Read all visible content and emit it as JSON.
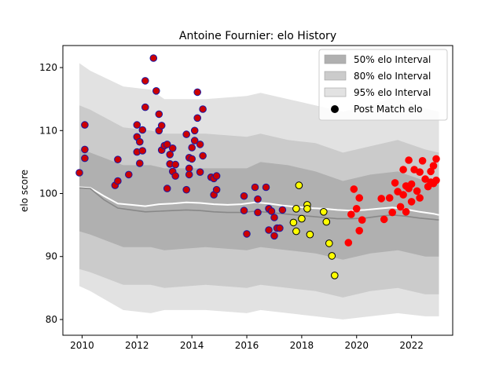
{
  "chart_data": {
    "type": "scatter",
    "title": "Antoine Fournier: elo History",
    "xlabel": "",
    "ylabel": "elo score",
    "xlim": [
      2009.3,
      2023.5
    ],
    "ylim": [
      77.5,
      123.5
    ],
    "x_ticks": [
      2010,
      2012,
      2014,
      2016,
      2018,
      2020,
      2022
    ],
    "y_ticks": [
      80,
      90,
      100,
      110,
      120
    ],
    "grid": false,
    "legend_position": "top-right",
    "legend": [
      {
        "label": "50% elo Interval",
        "kind": "band",
        "color": "#b0b0b0"
      },
      {
        "label": "80% elo Interval",
        "kind": "band",
        "color": "#cbcbcb"
      },
      {
        "label": "95% elo Interval",
        "kind": "band",
        "color": "#e2e2e2"
      },
      {
        "label": "Post Match elo",
        "kind": "marker",
        "color": "#000000"
      }
    ],
    "bands": {
      "x": [
        2009.9,
        2010.3,
        2011.5,
        2012.5,
        2013.0,
        2014.5,
        2016.0,
        2016.5,
        2017.5,
        2018.5,
        2019.5,
        2020.5,
        2021.5,
        2022.5,
        2023.0
      ],
      "p95_upper": [
        120.7,
        119.5,
        117.0,
        116.5,
        115.0,
        115.0,
        115.5,
        116.0,
        115.0,
        114.0,
        113.0,
        114.0,
        115.5,
        113.5,
        113.0
      ],
      "p80_upper": [
        114.0,
        113.3,
        110.5,
        110.0,
        109.5,
        109.5,
        109.0,
        109.5,
        108.5,
        108.0,
        106.5,
        107.5,
        108.5,
        107.0,
        106.5
      ],
      "p50_upper": [
        107.0,
        106.5,
        104.5,
        104.5,
        104.0,
        104.0,
        104.0,
        105.0,
        104.5,
        103.5,
        102.0,
        103.0,
        103.5,
        102.0,
        102.0
      ],
      "p50_lower": [
        94.0,
        93.5,
        91.5,
        91.5,
        91.0,
        91.5,
        91.0,
        91.5,
        91.0,
        90.5,
        89.5,
        90.5,
        91.0,
        90.0,
        90.0
      ],
      "p80_lower": [
        88.0,
        87.5,
        85.5,
        85.5,
        85.0,
        85.5,
        85.0,
        85.5,
        85.0,
        84.5,
        83.5,
        84.5,
        85.0,
        84.0,
        84.0
      ],
      "p95_lower": [
        85.3,
        84.5,
        81.5,
        81.0,
        81.5,
        81.5,
        81.0,
        81.5,
        81.0,
        80.5,
        80.0,
        80.5,
        81.0,
        80.5,
        80.5
      ]
    },
    "series": [
      {
        "name": "white-line",
        "color": "#ffffff",
        "x": [
          2009.9,
          2010.3,
          2010.8,
          2011.3,
          2011.8,
          2012.3,
          2012.8,
          2013.3,
          2013.8,
          2014.3,
          2014.8,
          2015.3,
          2015.8,
          2016.3,
          2016.8,
          2017.3,
          2017.8,
          2018.3,
          2018.8,
          2019.3,
          2019.8,
          2020.3,
          2020.8,
          2021.3,
          2021.8,
          2022.3,
          2022.8,
          2023.0
        ],
        "y": [
          101.0,
          100.9,
          99.6,
          98.4,
          98.2,
          98.0,
          98.3,
          98.4,
          98.6,
          98.5,
          98.3,
          98.2,
          98.3,
          98.6,
          98.4,
          98.1,
          97.9,
          97.7,
          97.6,
          97.4,
          97.3,
          97.4,
          97.6,
          97.8,
          97.5,
          97.1,
          96.8,
          96.6
        ]
      },
      {
        "name": "median-line",
        "color": "#888888",
        "x": [
          2009.9,
          2010.3,
          2010.8,
          2011.3,
          2011.8,
          2012.3,
          2012.8,
          2013.3,
          2013.8,
          2014.3,
          2014.8,
          2015.3,
          2015.8,
          2016.3,
          2016.8,
          2017.3,
          2017.8,
          2018.3,
          2018.8,
          2019.3,
          2019.8,
          2020.3,
          2020.8,
          2021.3,
          2021.8,
          2022.3,
          2022.8,
          2023.0
        ],
        "y": [
          100.9,
          100.8,
          99.0,
          97.7,
          97.4,
          97.1,
          97.2,
          97.3,
          97.4,
          97.3,
          97.1,
          97.0,
          97.0,
          97.2,
          97.0,
          96.8,
          96.6,
          96.4,
          96.2,
          96.0,
          96.0,
          96.1,
          96.4,
          96.6,
          96.4,
          96.1,
          95.9,
          95.8
        ]
      }
    ],
    "points": [
      {
        "group": "blue",
        "fill": "#cc0000",
        "edge": "#1a1aa6",
        "x": [
          2009.9,
          2010.1,
          2010.1,
          2010.1,
          2011.2,
          2011.3,
          2011.3,
          2011.7,
          2012.0,
          2012.0,
          2012.0,
          2012.1,
          2012.1,
          2012.2,
          2012.2,
          2012.3,
          2012.3,
          2012.6,
          2012.7,
          2012.8,
          2012.8,
          2012.9,
          2012.9,
          2013.0,
          2013.1,
          2013.1,
          2013.2,
          2013.2,
          2013.3,
          2013.3,
          2013.4,
          2013.4,
          2013.8,
          2013.8,
          2013.9,
          2013.9,
          2013.9,
          2014.0,
          2014.0,
          2014.1,
          2014.1,
          2014.2,
          2014.2,
          2014.3,
          2014.3,
          2014.4,
          2014.4,
          2014.7,
          2014.8,
          2014.8,
          2014.9,
          2014.9,
          2015.9,
          2015.9,
          2016.0,
          2016.3,
          2016.4,
          2016.4,
          2016.7,
          2016.8,
          2016.8,
          2016.9,
          2017.0,
          2017.0,
          2017.1,
          2017.2,
          2017.3
        ],
        "y": [
          103.3,
          110.9,
          107.0,
          105.6,
          101.3,
          105.4,
          102.0,
          103.0,
          110.9,
          109.0,
          106.6,
          108.2,
          104.8,
          106.8,
          110.1,
          113.7,
          117.9,
          121.5,
          116.3,
          112.6,
          110.0,
          106.9,
          110.8,
          107.6,
          107.8,
          100.8,
          104.7,
          106.2,
          103.5,
          107.2,
          104.6,
          102.8,
          109.4,
          100.6,
          104.0,
          105.7,
          103.0,
          107.3,
          105.5,
          108.4,
          110.0,
          116.1,
          112.0,
          103.4,
          107.8,
          106.0,
          113.4,
          102.6,
          99.8,
          102.4,
          100.6,
          102.8,
          99.6,
          97.3,
          93.6,
          101.0,
          97.0,
          99.1,
          101.0,
          97.6,
          94.2,
          97.2,
          96.2,
          93.3,
          94.5,
          94.5,
          97.4
        ]
      },
      {
        "group": "yellow",
        "fill": "#ffff00",
        "edge": "#000000",
        "x": [
          2017.7,
          2017.8,
          2017.8,
          2017.9,
          2018.0,
          2018.2,
          2018.2,
          2018.3,
          2018.8,
          2018.9,
          2019.0,
          2019.1,
          2019.2
        ],
        "y": [
          95.4,
          97.6,
          94.0,
          101.3,
          96.0,
          98.2,
          97.6,
          93.5,
          97.1,
          95.5,
          92.1,
          90.1,
          87.0
        ]
      },
      {
        "group": "red",
        "fill": "#ff0000",
        "edge": "#ff0000",
        "x": [
          2019.7,
          2019.8,
          2019.9,
          2020.0,
          2020.1,
          2020.1,
          2020.2,
          2020.9,
          2021.0,
          2021.2,
          2021.3,
          2021.4,
          2021.5,
          2021.6,
          2021.7,
          2021.7,
          2021.8,
          2021.8,
          2021.9,
          2021.9,
          2022.0,
          2022.0,
          2022.1,
          2022.2,
          2022.3,
          2022.3,
          2022.4,
          2022.5,
          2022.6,
          2022.7,
          2022.7,
          2022.8,
          2022.8,
          2022.9,
          2022.9
        ],
        "y": [
          92.2,
          96.7,
          100.7,
          97.6,
          94.1,
          99.3,
          95.8,
          99.2,
          95.9,
          99.3,
          97.0,
          101.7,
          100.3,
          97.9,
          103.8,
          99.8,
          101.2,
          97.1,
          100.8,
          105.3,
          101.5,
          98.7,
          103.8,
          100.4,
          103.4,
          99.3,
          105.2,
          102.3,
          101.1,
          101.8,
          103.5,
          101.6,
          104.4,
          102.1,
          105.5
        ]
      }
    ]
  }
}
